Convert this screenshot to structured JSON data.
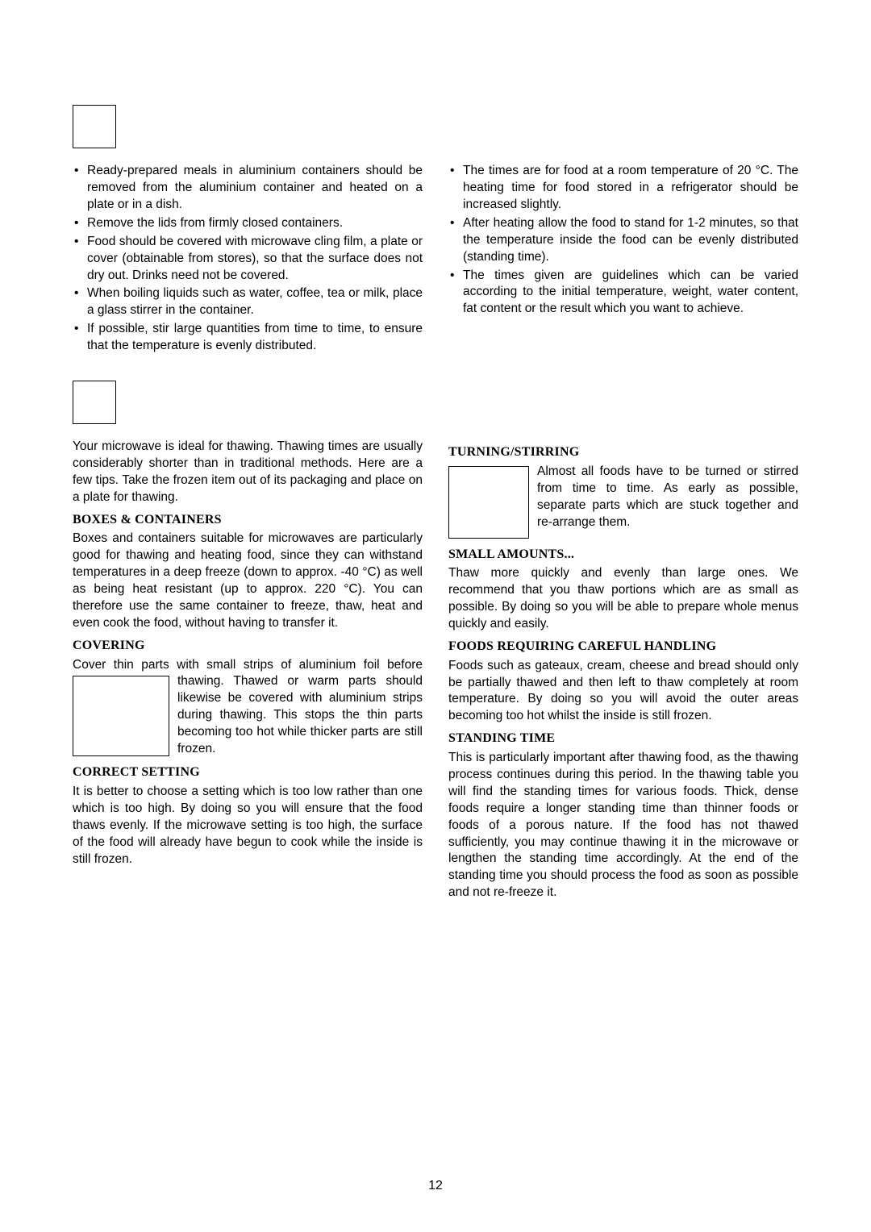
{
  "section1": {
    "left_bullets": [
      "Ready-prepared meals in aluminium containers should be removed from the aluminium container and heated on a plate or in a dish.",
      "Remove the lids from firmly closed containers.",
      "Food should be covered with microwave cling film, a plate or cover (obtainable from stores), so that the surface does not dry out. Drinks need not be covered.",
      "When boiling liquids such as water, coffee, tea or milk, place a glass stirrer in the container.",
      "If possible, stir large quantities from time to time, to ensure that the temperature is evenly distributed."
    ],
    "right_bullets": [
      "The times are for food at a room temperature of 20 °C. The heating time for food stored in a refrigerator should be increased slightly.",
      "After heating allow the food to stand for 1-2 minutes, so that the temperature inside the food can be evenly distributed (standing time).",
      "The times given are guidelines which can be varied according to the initial temperature, weight, water content, fat content or the result which you want to achieve."
    ]
  },
  "section2": {
    "left": {
      "intro": "Your microwave is ideal for thawing. Thawing times are usually considerably shorter than in traditional methods. Here are a few tips. Take the frozen item out of its packaging and place on a plate for thawing.",
      "h1": "BOXES & CONTAINERS",
      "p1": "Boxes and containers suitable for microwaves are particularly good for thawing and heating food, since they can withstand temperatures in a deep freeze (down to approx. -40 °C) as well as being heat resistant (up to approx. 220 °C). You can therefore use the same container to freeze, thaw, heat and even cook the food, without having to transfer it.",
      "h2": "COVERING",
      "p2a": "Cover thin parts with small strips of aluminium foil",
      "p2b": "before thawing. Thawed or warm parts should likewise be covered with aluminium strips during thawing. This stops the thin parts becoming too hot while thicker parts are still frozen.",
      "h3": "CORRECT SETTING",
      "p3": "It is better to choose a setting which is too low rather than one which is too high. By doing so you will ensure that the food thaws evenly. If the microwave setting is too high, the surface of the food will already have begun to cook while the inside is still frozen."
    },
    "right": {
      "h1": "TURNING/STIRRING",
      "p1": "Almost all foods have to be turned or stirred from time to time. As early as possible, separate parts which are stuck together and re-arrange them.",
      "h2": "SMALL AMOUNTS...",
      "p2": "Thaw more quickly and evenly than large ones. We recommend that you thaw portions which are as small as possible. By doing so you will be able to prepare whole menus quickly and easily.",
      "h3": "FOODS REQUIRING CAREFUL HANDLING",
      "p3": "Foods such as gateaux, cream, cheese and bread should only be partially thawed and then left to thaw completely at room temperature. By doing so you will avoid the outer areas becoming too hot whilst the inside is still frozen.",
      "h4": "STANDING TIME",
      "p4": "This is particularly important after thawing food, as the thawing process continues during this period. In the thawing table you will find the standing times for various foods. Thick, dense foods require a longer standing time than thinner foods or foods of a porous nature. If the food has not thawed sufficiently, you may continue thawing it in the microwave or lengthen the standing time accordingly. At the end of the standing time you should process the food as soon as possible and not re-freeze it."
    }
  },
  "page_number": "12"
}
